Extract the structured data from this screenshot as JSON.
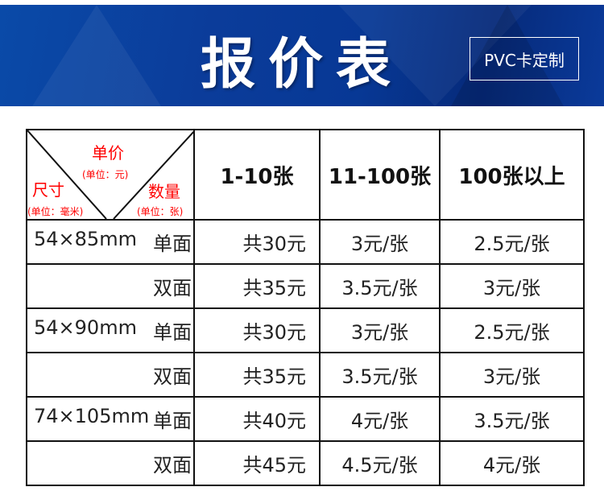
{
  "banner": {
    "title": "报价表",
    "tag": "PVC卡定制"
  },
  "corner": {
    "price": "单价",
    "price_unit": "(单位：元)",
    "size": "尺寸",
    "size_unit": "(单位：毫米)",
    "qty": "数量",
    "qty_unit": "(单位：张)"
  },
  "headers": [
    "1-10张",
    "11-100张",
    "100张以上"
  ],
  "rows": [
    {
      "size": "54×85mm",
      "side": "单面",
      "cells": [
        "共30元",
        "3元/张",
        "2.5元/张"
      ]
    },
    {
      "size": "",
      "side": "双面",
      "cells": [
        "共35元",
        "3.5元/张",
        "3元/张"
      ]
    },
    {
      "size": "54×90mm",
      "side": "单面",
      "cells": [
        "共30元",
        "3元/张",
        "2.5元/张"
      ]
    },
    {
      "size": "",
      "side": "双面",
      "cells": [
        "共35元",
        "3.5元/张",
        "3元/张"
      ]
    },
    {
      "size": "74×105mm",
      "side": "单面",
      "cells": [
        "共40元",
        "4元/张",
        "3.5元/张"
      ]
    },
    {
      "size": "",
      "side": "双面",
      "cells": [
        "共45元",
        "4.5元/张",
        "4元/张"
      ]
    }
  ]
}
